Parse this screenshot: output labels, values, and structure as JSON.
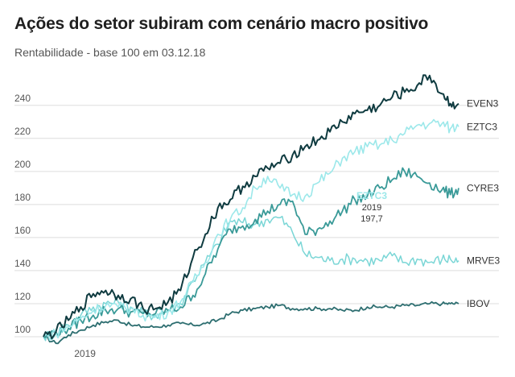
{
  "chart_data": {
    "type": "line",
    "title": "Ações do setor subiram com cenário macro positivo",
    "subtitle": "Rentabilidade - base 100 em 03.12.18",
    "xlabel": "",
    "ylabel": "",
    "xlim": [
      0,
      100
    ],
    "ylim": [
      100,
      255
    ],
    "y_ticks": [
      100,
      120,
      140,
      160,
      180,
      200,
      220,
      240
    ],
    "x_tick_labels": [
      {
        "x": 10,
        "label": "2019"
      }
    ],
    "grid": true,
    "legend": "none — series labelled at right end of each line",
    "series": [
      {
        "name": "EVEN3",
        "color": "#0f3b40",
        "x": [
          0,
          3,
          6,
          9,
          12,
          15,
          18,
          21,
          24,
          27,
          30,
          33,
          36,
          39,
          42,
          45,
          48,
          51,
          54,
          57,
          60,
          63,
          66,
          69,
          72,
          75,
          78,
          81,
          84,
          87,
          90,
          93,
          96,
          98,
          100
        ],
        "y": [
          100,
          103,
          110,
          118,
          126,
          128,
          125,
          123,
          117,
          117,
          121,
          128,
          148,
          162,
          178,
          183,
          191,
          197,
          202,
          205,
          210,
          215,
          219,
          224,
          230,
          235,
          237,
          240,
          245,
          248,
          252,
          258,
          247,
          241,
          241
        ]
      },
      {
        "name": "EZTC3",
        "color": "#9ce8ea",
        "x": [
          0,
          3,
          6,
          9,
          12,
          15,
          18,
          21,
          24,
          27,
          30,
          33,
          36,
          39,
          42,
          45,
          48,
          51,
          54,
          57,
          60,
          63,
          66,
          69,
          72,
          75,
          78,
          81,
          84,
          87,
          90,
          93,
          96,
          98,
          100
        ],
        "y": [
          100,
          102,
          106,
          111,
          116,
          119,
          118,
          117,
          113,
          112,
          115,
          121,
          133,
          145,
          162,
          171,
          178,
          190,
          197,
          190,
          186,
          185,
          193,
          199,
          208,
          212,
          215,
          216,
          219,
          223,
          228,
          229,
          229,
          226,
          227
        ]
      },
      {
        "name": "CYRE3",
        "color": "#3a9a98",
        "x": [
          0,
          3,
          6,
          9,
          12,
          15,
          18,
          21,
          24,
          27,
          30,
          33,
          36,
          39,
          42,
          45,
          48,
          51,
          54,
          57,
          60,
          63,
          66,
          69,
          72,
          75,
          78,
          81,
          84,
          87,
          90,
          93,
          96,
          98,
          100
        ],
        "y": [
          100,
          103,
          105,
          110,
          113,
          116,
          117,
          115,
          114,
          114,
          116,
          118,
          125,
          138,
          153,
          165,
          167,
          171,
          176,
          180,
          182,
          162,
          165,
          170,
          176,
          183,
          185,
          190,
          195,
          200,
          197,
          193,
          189,
          186,
          190
        ]
      },
      {
        "name": "MRVE3",
        "color": "#7ad6d6",
        "x": [
          0,
          3,
          6,
          9,
          12,
          15,
          18,
          21,
          24,
          27,
          30,
          33,
          36,
          39,
          42,
          45,
          48,
          51,
          54,
          57,
          60,
          63,
          66,
          69,
          72,
          75,
          78,
          81,
          84,
          87,
          90,
          93,
          96,
          98,
          100
        ],
        "y": [
          100,
          102,
          107,
          113,
          118,
          120,
          121,
          118,
          114,
          113,
          116,
          120,
          134,
          145,
          156,
          170,
          169,
          168,
          171,
          172,
          163,
          150,
          148,
          146,
          147,
          147,
          146,
          146,
          149,
          145,
          147,
          145,
          147,
          147,
          146
        ]
      },
      {
        "name": "IBOV",
        "color": "#2d6e70",
        "x": [
          0,
          3,
          6,
          9,
          12,
          15,
          18,
          21,
          24,
          27,
          30,
          33,
          36,
          39,
          42,
          45,
          48,
          51,
          54,
          57,
          60,
          63,
          66,
          69,
          72,
          75,
          78,
          81,
          84,
          87,
          90,
          93,
          96,
          98,
          100
        ],
        "y": [
          100,
          96,
          101,
          104,
          107,
          109,
          110,
          107,
          106,
          106,
          107,
          108,
          107,
          108,
          110,
          114,
          116,
          117,
          118,
          119,
          117,
          117,
          117,
          117,
          116,
          116,
          118,
          118,
          118,
          119,
          119,
          120,
          120,
          120,
          120
        ]
      }
    ],
    "annotations": [
      {
        "series": "EZTC3",
        "label": "EZTC3",
        "lines": [
          "2019",
          "197,7"
        ]
      }
    ]
  }
}
